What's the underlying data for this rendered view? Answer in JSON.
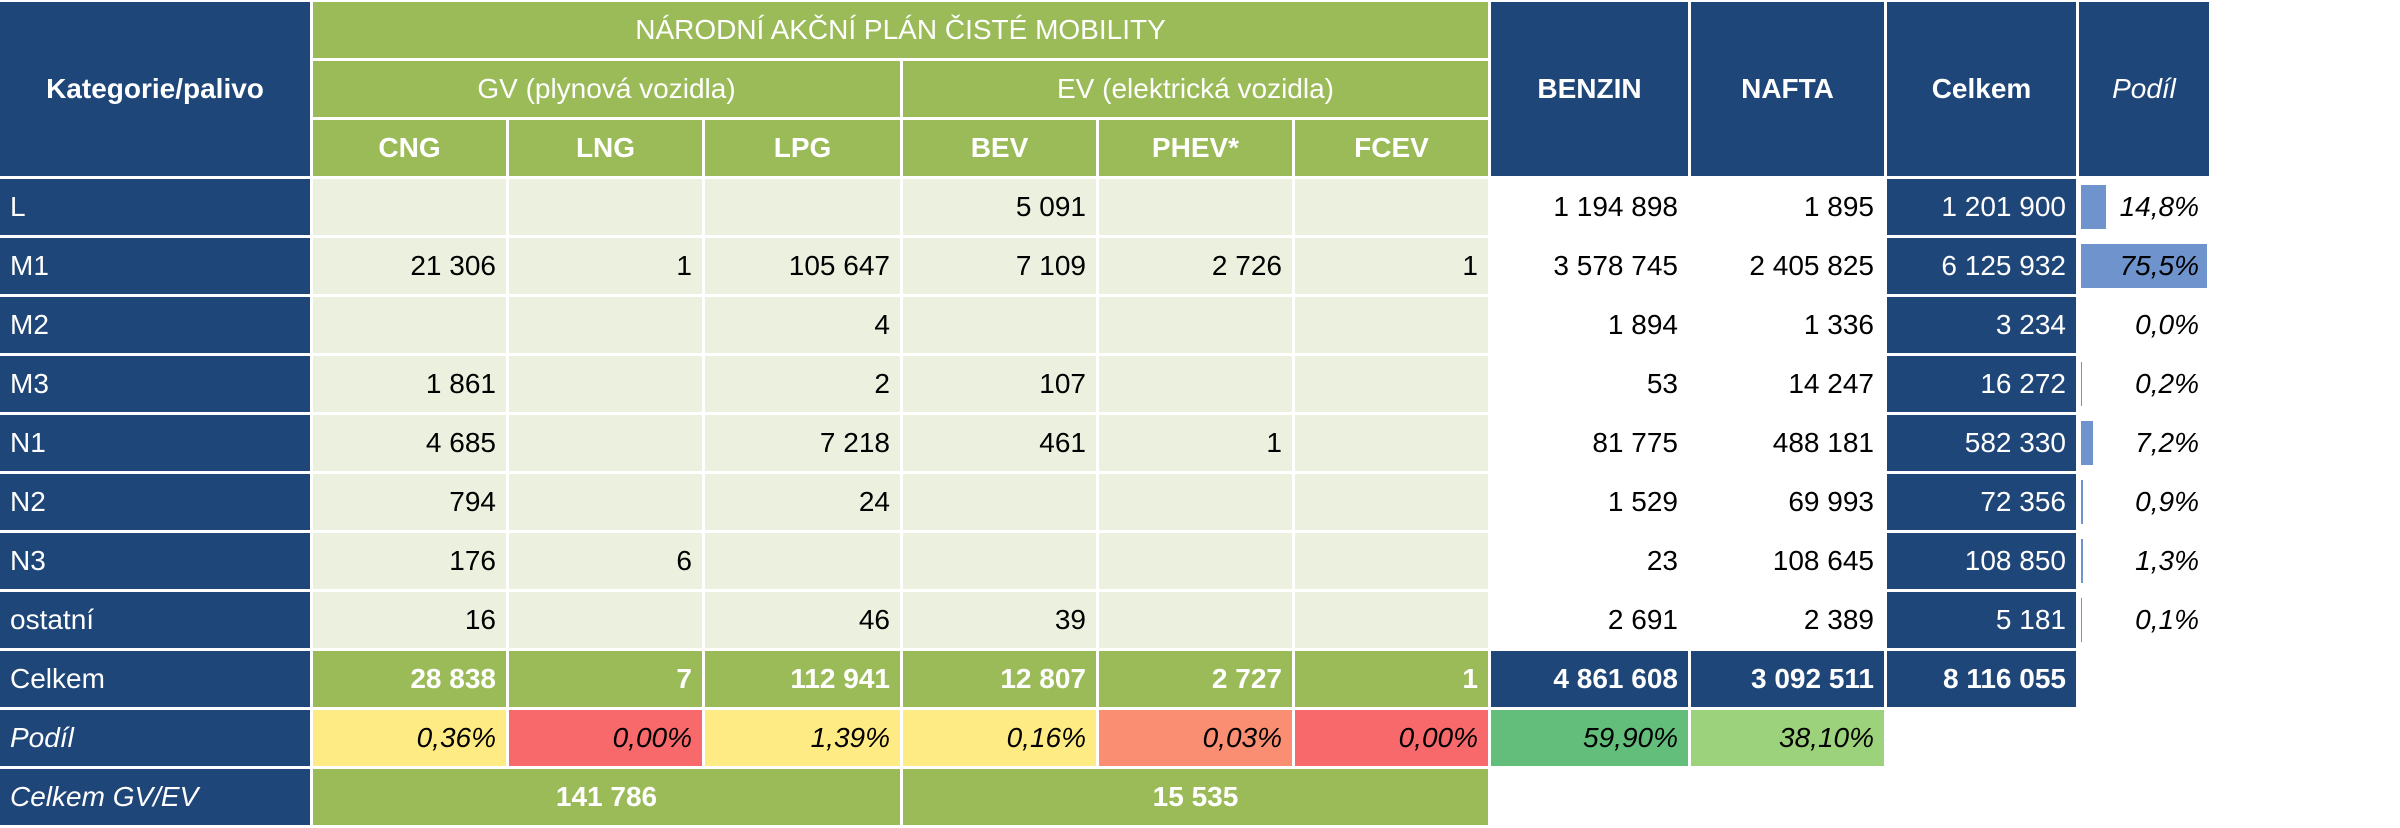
{
  "header": {
    "corner": "Kategorie/palivo",
    "group_title": "NÁRODNÍ AKČNÍ PLÁN ČISTÉ MOBILITY",
    "gv": "GV (plynová vozidla)",
    "ev": "EV (elektrická vozidla)",
    "benzin": "BENZIN",
    "nafta": "NAFTA",
    "celkem": "Celkem",
    "podil": "Podíl",
    "fuels": [
      "CNG",
      "LNG",
      "LPG",
      "BEV",
      "PHEV*",
      "FCEV"
    ]
  },
  "rows": [
    {
      "label": "L",
      "cells": [
        "",
        "",
        "",
        "5 091",
        "",
        ""
      ],
      "benzin": "1 194 898",
      "nafta": "1 895",
      "celkem": "1 201 900",
      "podil": "14,8%",
      "podil_value": 14.8
    },
    {
      "label": "M1",
      "cells": [
        "21 306",
        "1",
        "105 647",
        "7 109",
        "2 726",
        "1"
      ],
      "benzin": "3 578 745",
      "nafta": "2 405 825",
      "celkem": "6 125 932",
      "podil": "75,5%",
      "podil_value": 75.5
    },
    {
      "label": "M2",
      "cells": [
        "",
        "",
        "4",
        "",
        "",
        ""
      ],
      "benzin": "1 894",
      "nafta": "1 336",
      "celkem": "3 234",
      "podil": "0,0%",
      "podil_value": 0.0
    },
    {
      "label": "M3",
      "cells": [
        "1 861",
        "",
        "2",
        "107",
        "",
        ""
      ],
      "benzin": "53",
      "nafta": "14 247",
      "celkem": "16 272",
      "podil": "0,2%",
      "podil_value": 0.2
    },
    {
      "label": "N1",
      "cells": [
        "4 685",
        "",
        "7 218",
        "461",
        "1",
        ""
      ],
      "benzin": "81 775",
      "nafta": "488 181",
      "celkem": "582 330",
      "podil": "7,2%",
      "podil_value": 7.2
    },
    {
      "label": "N2",
      "cells": [
        "794",
        "",
        "24",
        "",
        "",
        ""
      ],
      "benzin": "1 529",
      "nafta": "69 993",
      "celkem": "72 356",
      "podil": "0,9%",
      "podil_value": 0.9
    },
    {
      "label": "N3",
      "cells": [
        "176",
        "6",
        "",
        "",
        "",
        ""
      ],
      "benzin": "23",
      "nafta": "108 645",
      "celkem": "108 850",
      "podil": "1,3%",
      "podil_value": 1.3
    },
    {
      "label": "ostatní",
      "cells": [
        "16",
        "",
        "46",
        "39",
        "",
        ""
      ],
      "benzin": "2 691",
      "nafta": "2 389",
      "celkem": "5 181",
      "podil": "0,1%",
      "podil_value": 0.1
    }
  ],
  "totals": {
    "label": "Celkem",
    "cells": [
      "28 838",
      "7",
      "112 941",
      "12 807",
      "2 727",
      "1"
    ],
    "benzin": "4 861 608",
    "nafta": "3 092 511",
    "celkem": "8 116 055"
  },
  "shares": {
    "label": "Podíl",
    "cells": [
      "0,36%",
      "0,00%",
      "1,39%",
      "0,16%",
      "0,03%",
      "0,00%"
    ],
    "benzin": "59,90%",
    "nafta": "38,10%",
    "colors": [
      "#ffeb84",
      "#f8696b",
      "#ffeb84",
      "#ffeb84",
      "#fa8e73",
      "#f8696b",
      "#63be7b",
      "#9bd27b"
    ]
  },
  "gv_ev": {
    "label": "Celkem GV/EV",
    "gv": "141 786",
    "ev": "15 535"
  },
  "colors": {
    "header_blue": "#1f4678",
    "header_green": "#9bbb59",
    "cell_light_green": "#ebf1de",
    "data_bar": "#5f87c6"
  }
}
